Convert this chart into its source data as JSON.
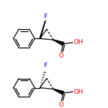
{
  "background_color": "#ffffff",
  "figsize": [
    1.52,
    1.52
  ],
  "dpi": 100,
  "bond_color": "#000000",
  "atom_colors": {
    "F": "#0000ff",
    "O": "#ff0000"
  },
  "font_size": 6.5,
  "line_width": 0.9
}
